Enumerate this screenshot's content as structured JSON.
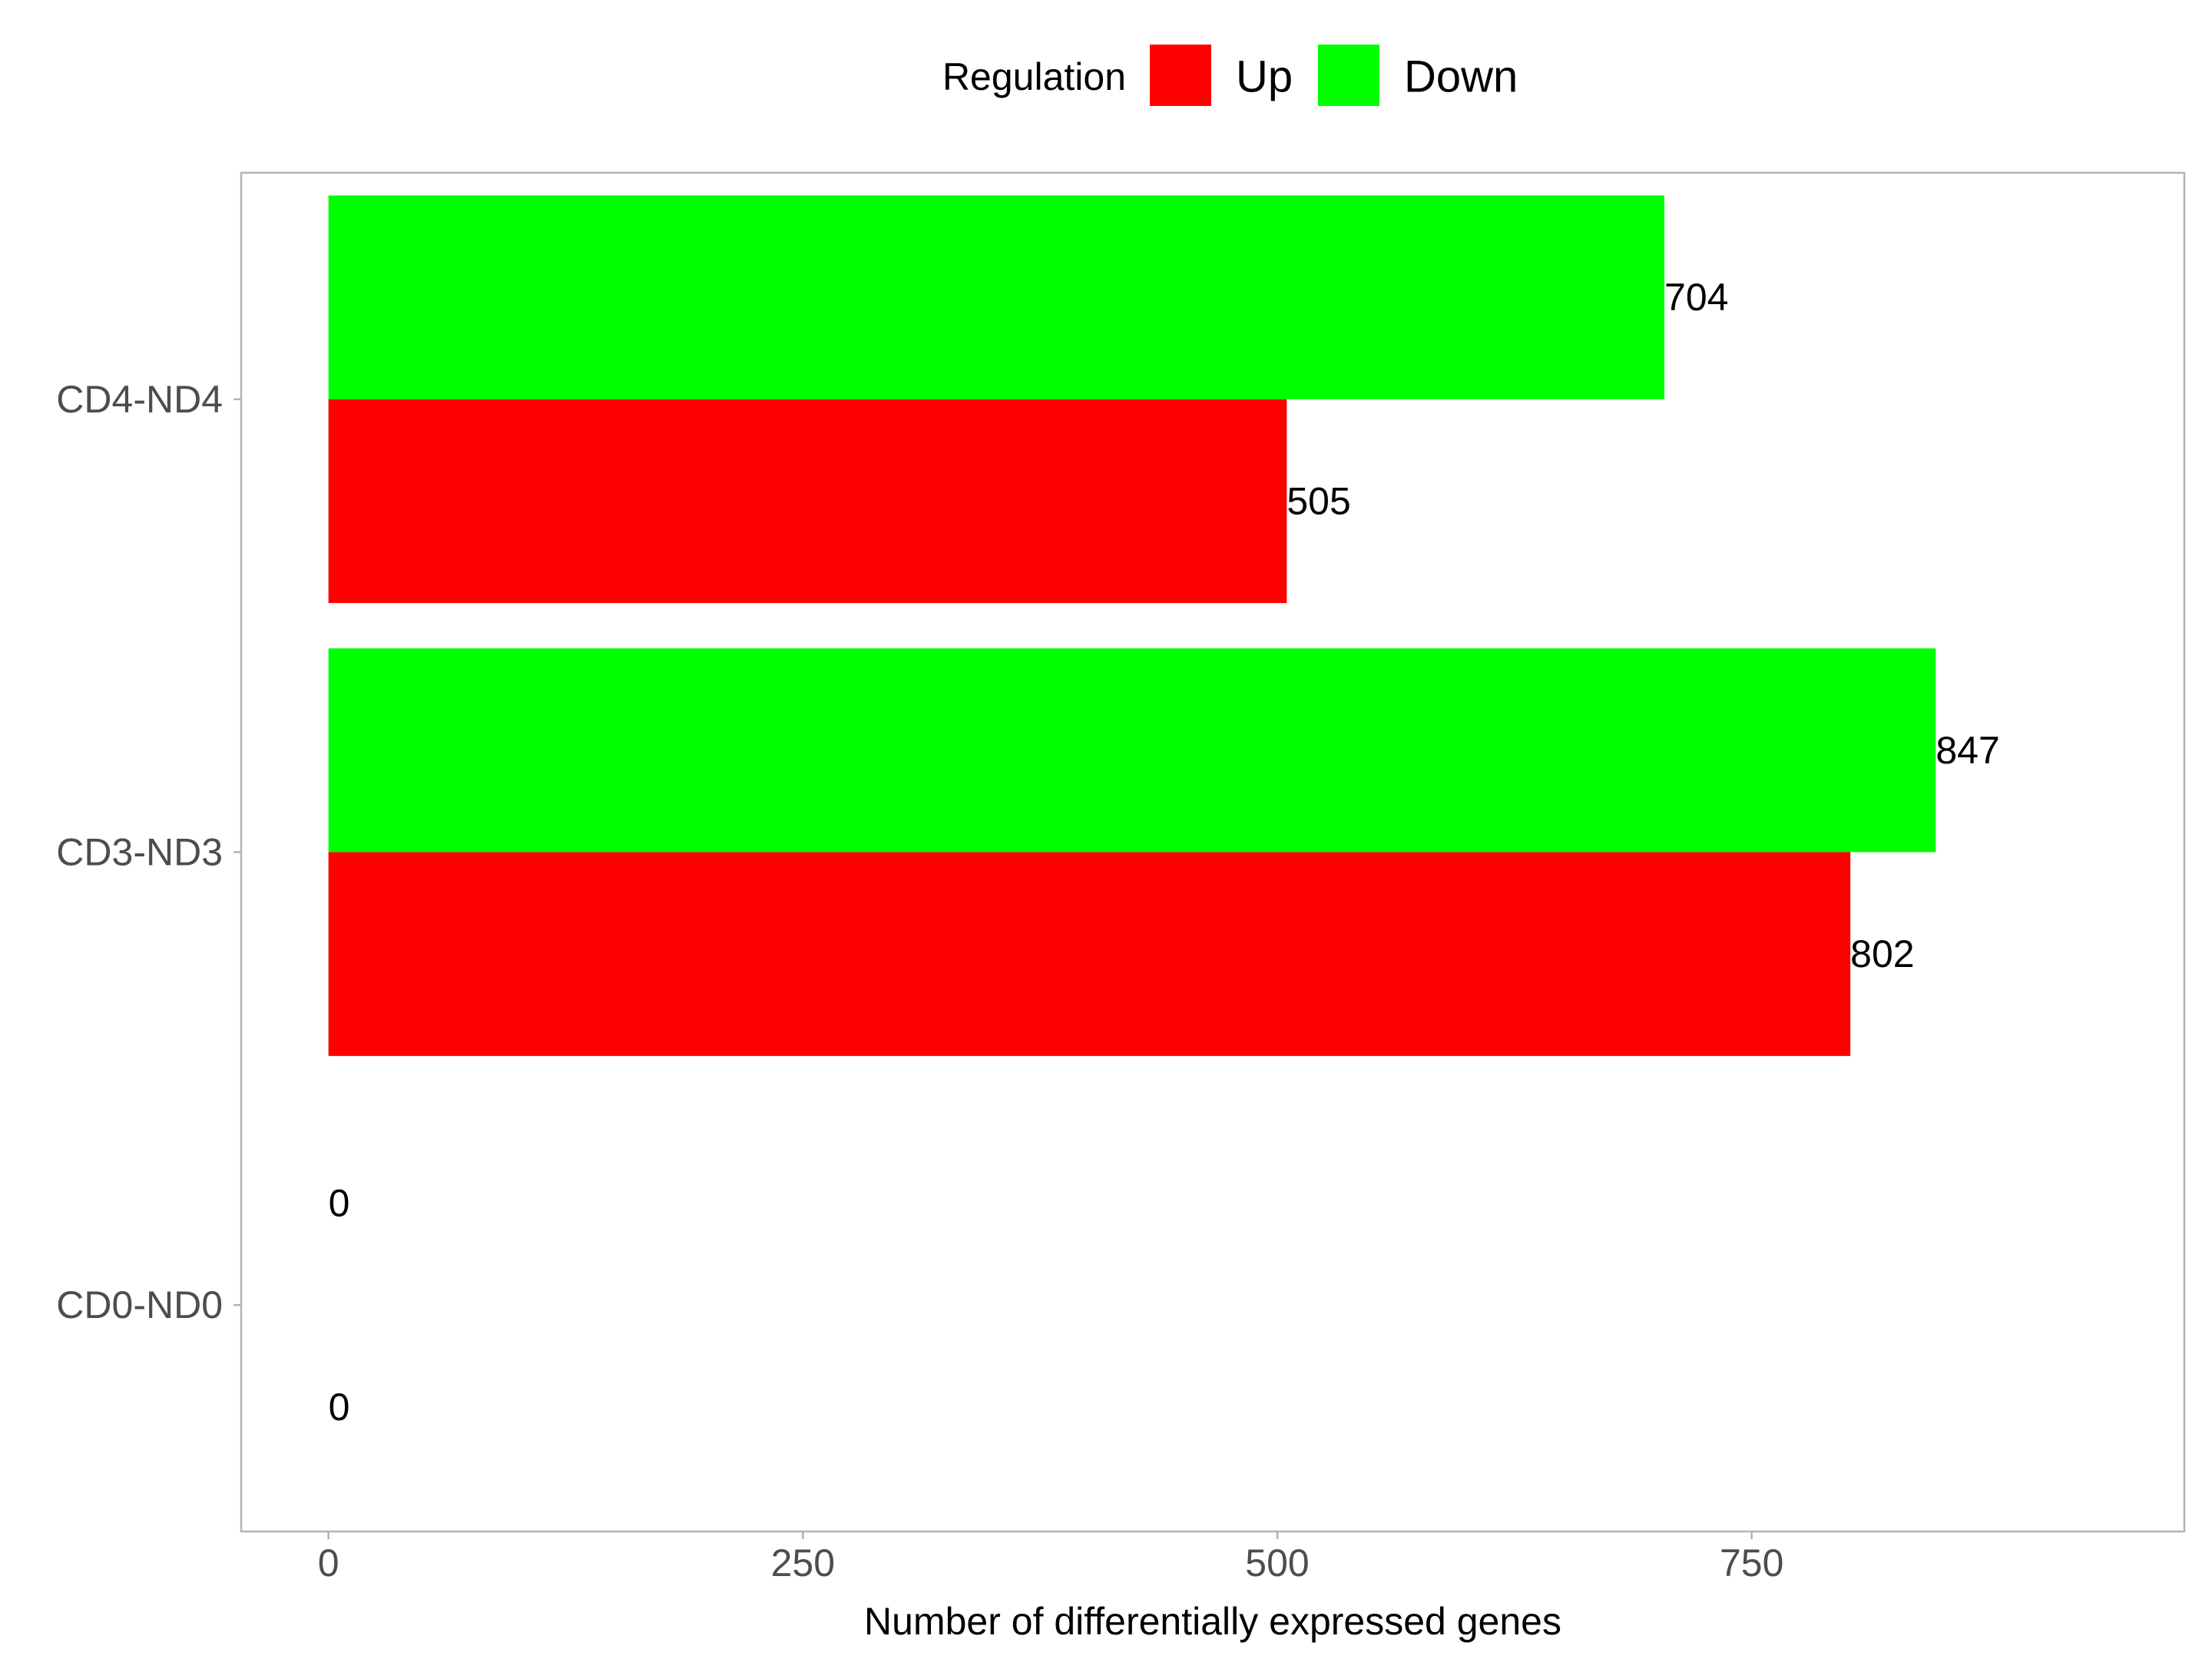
{
  "chart_data": {
    "type": "bar",
    "orientation": "horizontal",
    "categories": [
      "CD0-ND0",
      "CD3-ND3",
      "CD4-ND4"
    ],
    "series": [
      {
        "name": "Up",
        "color": "#FF0000",
        "values": [
          0,
          802,
          505
        ]
      },
      {
        "name": "Down",
        "color": "#00FF00",
        "values": [
          0,
          847,
          704
        ]
      }
    ],
    "data_labels": [
      {
        "category": "CD0-ND0",
        "series": "Up",
        "text": "0"
      },
      {
        "category": "CD0-ND0",
        "series": "Down",
        "text": "0"
      },
      {
        "category": "CD3-ND3",
        "series": "Up",
        "text": "802"
      },
      {
        "category": "CD3-ND3",
        "series": "Down",
        "text": "847"
      },
      {
        "category": "CD4-ND4",
        "series": "Up",
        "text": "505"
      },
      {
        "category": "CD4-ND4",
        "series": "Down",
        "text": "704"
      }
    ],
    "xlabel": "Number of differentially expressed genes",
    "ylabel": "",
    "xlim": [
      -46,
      978
    ],
    "x_ticks": [
      0,
      250,
      500,
      750
    ],
    "x_tick_labels": [
      "0",
      "250",
      "500",
      "750"
    ],
    "legend": {
      "title": "Regulation",
      "entries": [
        "Up",
        "Down"
      ],
      "position": "top"
    },
    "grid": false,
    "panel_border_color": "#B3B3B3"
  }
}
